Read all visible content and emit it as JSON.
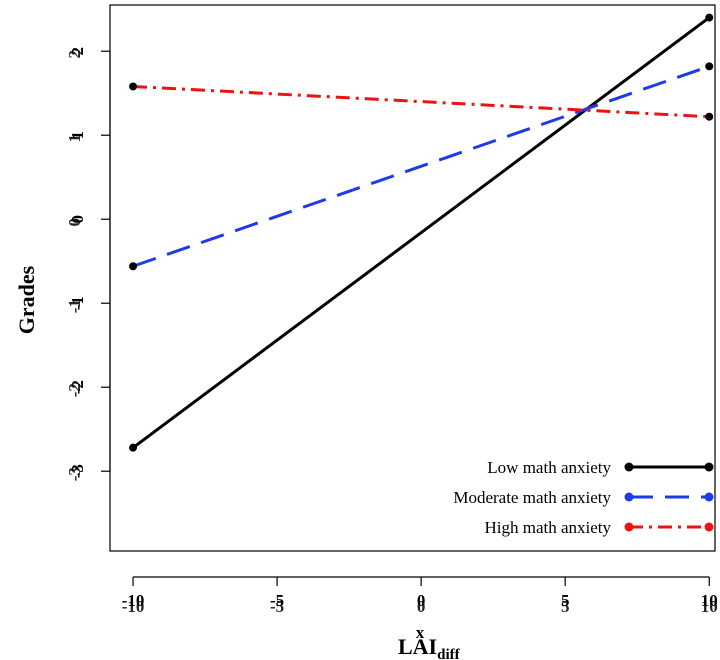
{
  "chart_data": {
    "type": "line",
    "title": "",
    "xlabel": "LAI",
    "xlabel_subscript": "diff",
    "xlabel_overlay": "x",
    "ylabel": "Grades",
    "xlim": [
      -10.8,
      10.2
    ],
    "ylim": [
      -3.95,
      2.55
    ],
    "x_ticks": [
      -10,
      -5,
      0,
      5,
      10
    ],
    "x_tick_labels": [
      "-10",
      "-5",
      "0",
      "5",
      "10"
    ],
    "x_tick_overlays": [
      "-10",
      "-5",
      "0",
      "5",
      "10"
    ],
    "y_ticks": [
      -3,
      -2,
      -1,
      0,
      1,
      2
    ],
    "y_tick_labels": [
      "-3",
      "-2",
      "-1",
      "0",
      "1",
      "2"
    ],
    "y_tick_overlays": [
      "-3",
      "-2",
      "-1",
      "0",
      "1",
      "2"
    ],
    "grid": false,
    "legend_position": "bottom-right",
    "series": [
      {
        "name": "Low math anxiety",
        "x": [
          -10,
          10
        ],
        "y": [
          -2.72,
          2.4
        ],
        "color": "#000000",
        "dash": "solid"
      },
      {
        "name": "Moderate math anxiety",
        "x": [
          -10,
          10
        ],
        "y": [
          -0.56,
          1.82
        ],
        "color": "#1f3be8",
        "dash": "dashed"
      },
      {
        "name": "High math anxiety",
        "x": [
          -10,
          10
        ],
        "y": [
          1.58,
          1.22
        ],
        "color": "#ee1111",
        "dash": "dotdash"
      }
    ]
  }
}
